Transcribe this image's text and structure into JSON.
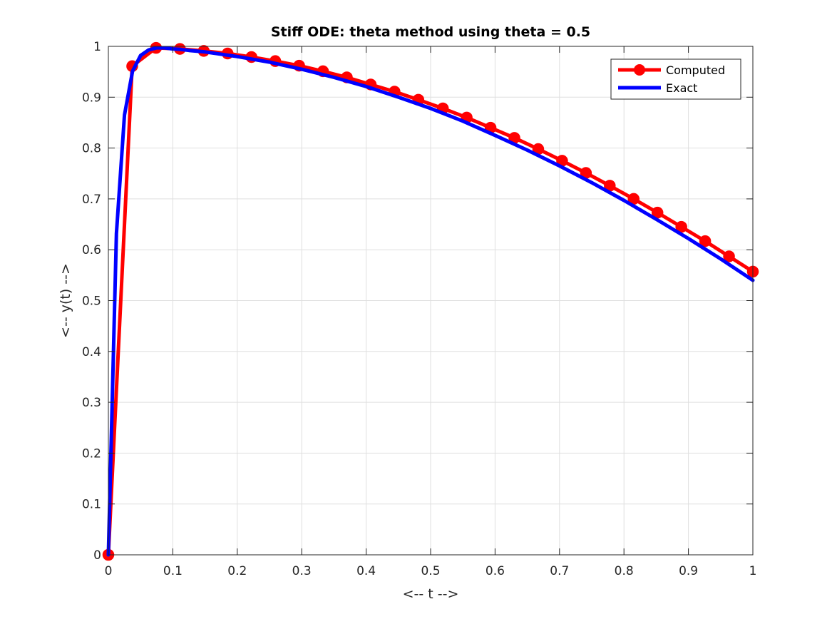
{
  "chart_data": {
    "type": "line",
    "title": "Stiff ODE: theta method using theta = 0.5",
    "xlabel": "<-- t -->",
    "ylabel": "<-- y(t) -->",
    "xlim": [
      0,
      1
    ],
    "ylim": [
      0,
      1
    ],
    "xticks": [
      0,
      0.1,
      0.2,
      0.3,
      0.4,
      0.5,
      0.6,
      0.7,
      0.8,
      0.9,
      1
    ],
    "yticks": [
      0,
      0.1,
      0.2,
      0.3,
      0.4,
      0.5,
      0.6,
      0.7,
      0.8,
      0.9,
      1
    ],
    "xtick_labels": [
      "0",
      "0.1",
      "0.2",
      "0.3",
      "0.4",
      "0.5",
      "0.6",
      "0.7",
      "0.8",
      "0.9",
      "1"
    ],
    "ytick_labels": [
      "0",
      "0.1",
      "0.2",
      "0.3",
      "0.4",
      "0.5",
      "0.6",
      "0.7",
      "0.8",
      "0.9",
      "1"
    ],
    "grid": true,
    "legend_position": "top-right",
    "series": [
      {
        "name": "Computed",
        "color": "#ff0000",
        "marker": "circle",
        "x": [
          0,
          0.037,
          0.074,
          0.111,
          0.148,
          0.185,
          0.222,
          0.259,
          0.296,
          0.333,
          0.37,
          0.407,
          0.444,
          0.481,
          0.519,
          0.556,
          0.593,
          0.63,
          0.667,
          0.704,
          0.741,
          0.778,
          0.815,
          0.852,
          0.889,
          0.926,
          0.963,
          1.0
        ],
        "y": [
          0,
          0.961,
          0.997,
          0.995,
          0.991,
          0.986,
          0.979,
          0.971,
          0.962,
          0.951,
          0.939,
          0.925,
          0.911,
          0.895,
          0.878,
          0.86,
          0.84,
          0.82,
          0.798,
          0.775,
          0.751,
          0.726,
          0.7,
          0.673,
          0.645,
          0.617,
          0.587,
          0.557
        ]
      },
      {
        "name": "Exact",
        "color": "#0000ff",
        "marker": "none",
        "x": [
          0,
          0.0125,
          0.025,
          0.0375,
          0.05,
          0.0625,
          0.075,
          0.0875,
          0.1,
          0.1125,
          0.125,
          0.15,
          0.2,
          0.25,
          0.3,
          0.35,
          0.4,
          0.45,
          0.5,
          0.55,
          0.6,
          0.65,
          0.7,
          0.75,
          0.8,
          0.85,
          0.9,
          0.95,
          1.0
        ],
        "y": [
          0,
          0.632,
          0.865,
          0.951,
          0.982,
          0.993,
          0.997,
          0.997,
          0.995,
          0.994,
          0.992,
          0.989,
          0.98,
          0.969,
          0.955,
          0.939,
          0.921,
          0.9,
          0.878,
          0.853,
          0.825,
          0.796,
          0.765,
          0.732,
          0.697,
          0.66,
          0.622,
          0.582,
          0.54
        ]
      }
    ]
  }
}
